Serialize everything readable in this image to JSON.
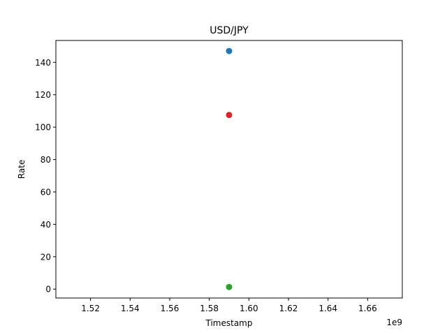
{
  "chart_data": {
    "type": "scatter",
    "title": "USD/JPY",
    "xlabel": "Timestamp",
    "ylabel": "Rate",
    "x_offset_label": "1e9",
    "xlim": [
      1.5025,
      1.6775
    ],
    "ylim": [
      -5.5,
      153.5
    ],
    "x_ticks": [
      1.52,
      1.54,
      1.56,
      1.58,
      1.6,
      1.62,
      1.64,
      1.66
    ],
    "x_tick_labels": [
      "1.52",
      "1.54",
      "1.56",
      "1.58",
      "1.60",
      "1.62",
      "1.64",
      "1.66"
    ],
    "y_ticks": [
      0,
      20,
      40,
      60,
      80,
      100,
      120,
      140
    ],
    "y_tick_labels": [
      "0",
      "20",
      "40",
      "60",
      "80",
      "100",
      "120",
      "140"
    ],
    "grid": false,
    "legend": "none",
    "series": [
      {
        "color": "#1f77b4",
        "points": [
          {
            "x": 1.59,
            "y": 147.0
          }
        ]
      },
      {
        "color": "#d62728",
        "points": [
          {
            "x": 1.59,
            "y": 107.5
          }
        ]
      },
      {
        "color": "#2ca02c",
        "points": [
          {
            "x": 1.59,
            "y": 1.3
          }
        ]
      }
    ]
  }
}
